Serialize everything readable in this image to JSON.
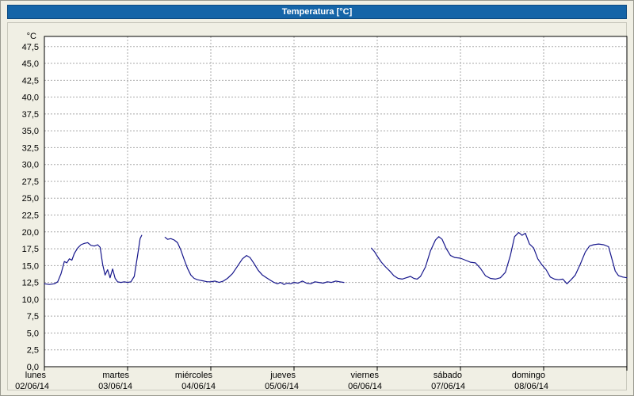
{
  "window": {
    "title": "Temperatura [°C]"
  },
  "colors": {
    "title_bar": "#1565a8",
    "background": "#f0efe4",
    "plot_background": "#ffffff",
    "grid": "#a8a8a8",
    "axis": "#000000",
    "line": "#16168b"
  },
  "chart_data": {
    "type": "line",
    "title": "Temperatura [°C]",
    "series_name": "Temperatura",
    "y_unit": "°C",
    "ylabel": "°C",
    "xlabel": "",
    "ylim": [
      0,
      49
    ],
    "ytick_step": 2.5,
    "grid": "dashed",
    "legend": "none",
    "line_color": "#16168b",
    "yticks": [
      {
        "v": 47.5,
        "label": "47,5"
      },
      {
        "v": 45.0,
        "label": "45,0"
      },
      {
        "v": 42.5,
        "label": "42,5"
      },
      {
        "v": 40.0,
        "label": "40,0"
      },
      {
        "v": 37.5,
        "label": "37,5"
      },
      {
        "v": 35.0,
        "label": "35,0"
      },
      {
        "v": 32.5,
        "label": "32,5"
      },
      {
        "v": 30.0,
        "label": "30,0"
      },
      {
        "v": 27.5,
        "label": "27,5"
      },
      {
        "v": 25.0,
        "label": "25,0"
      },
      {
        "v": 22.5,
        "label": "22,5"
      },
      {
        "v": 20.0,
        "label": "20,0"
      },
      {
        "v": 17.5,
        "label": "17,5"
      },
      {
        "v": 15.0,
        "label": "15,0"
      },
      {
        "v": 12.5,
        "label": "12,5"
      },
      {
        "v": 10.0,
        "label": "10,0"
      },
      {
        "v": 7.5,
        "label": "7,5"
      },
      {
        "v": 5.0,
        "label": "5,0"
      },
      {
        "v": 2.5,
        "label": "2,5"
      },
      {
        "v": 0.0,
        "label": "0,0"
      }
    ],
    "x_days": [
      {
        "name": "lunes",
        "date": "02/06/14"
      },
      {
        "name": "martes",
        "date": "03/06/14"
      },
      {
        "name": "miércoles",
        "date": "04/06/14"
      },
      {
        "name": "jueves",
        "date": "05/06/14"
      },
      {
        "name": "viernes",
        "date": "06/06/14"
      },
      {
        "name": "sábado",
        "date": "07/06/14"
      },
      {
        "name": "domingo",
        "date": "08/06/14"
      }
    ],
    "x_unit": "days (0 = 02/06/14 00:00)",
    "segments": [
      [
        [
          0.0,
          12.3
        ],
        [
          0.06,
          12.2
        ],
        [
          0.12,
          12.3
        ],
        [
          0.16,
          12.6
        ],
        [
          0.2,
          13.8
        ],
        [
          0.24,
          15.6
        ],
        [
          0.27,
          15.4
        ],
        [
          0.3,
          16.0
        ],
        [
          0.33,
          15.8
        ],
        [
          0.36,
          16.8
        ],
        [
          0.4,
          17.6
        ],
        [
          0.44,
          18.1
        ],
        [
          0.48,
          18.3
        ],
        [
          0.52,
          18.4
        ],
        [
          0.56,
          18.0
        ],
        [
          0.6,
          17.9
        ],
        [
          0.64,
          18.1
        ],
        [
          0.67,
          17.7
        ],
        [
          0.7,
          15.2
        ],
        [
          0.73,
          13.6
        ],
        [
          0.76,
          14.4
        ],
        [
          0.79,
          13.2
        ],
        [
          0.82,
          14.5
        ],
        [
          0.85,
          13.1
        ],
        [
          0.88,
          12.6
        ],
        [
          0.92,
          12.5
        ],
        [
          0.96,
          12.6
        ],
        [
          1.0,
          12.5
        ],
        [
          1.04,
          12.6
        ],
        [
          1.08,
          13.4
        ],
        [
          1.12,
          16.5
        ],
        [
          1.15,
          19.0
        ],
        [
          1.17,
          19.5
        ]
      ],
      [
        [
          1.45,
          19.2
        ],
        [
          1.48,
          18.9
        ],
        [
          1.52,
          19.0
        ],
        [
          1.56,
          18.8
        ],
        [
          1.6,
          18.4
        ],
        [
          1.64,
          17.3
        ],
        [
          1.68,
          15.9
        ],
        [
          1.72,
          14.6
        ],
        [
          1.76,
          13.6
        ],
        [
          1.8,
          13.1
        ],
        [
          1.84,
          12.9
        ],
        [
          1.88,
          12.8
        ],
        [
          1.92,
          12.7
        ],
        [
          1.96,
          12.6
        ],
        [
          2.0,
          12.6
        ],
        [
          2.05,
          12.7
        ],
        [
          2.1,
          12.5
        ],
        [
          2.15,
          12.7
        ],
        [
          2.2,
          13.1
        ],
        [
          2.26,
          13.8
        ],
        [
          2.32,
          14.9
        ],
        [
          2.38,
          16.0
        ],
        [
          2.43,
          16.5
        ],
        [
          2.47,
          16.2
        ],
        [
          2.52,
          15.3
        ],
        [
          2.57,
          14.3
        ],
        [
          2.62,
          13.6
        ],
        [
          2.67,
          13.2
        ],
        [
          2.72,
          12.8
        ],
        [
          2.76,
          12.5
        ],
        [
          2.8,
          12.3
        ],
        [
          2.84,
          12.5
        ],
        [
          2.88,
          12.2
        ],
        [
          2.92,
          12.4
        ],
        [
          2.96,
          12.3
        ],
        [
          3.0,
          12.5
        ],
        [
          3.05,
          12.4
        ],
        [
          3.1,
          12.7
        ],
        [
          3.15,
          12.4
        ],
        [
          3.2,
          12.3
        ],
        [
          3.25,
          12.6
        ],
        [
          3.3,
          12.5
        ],
        [
          3.35,
          12.4
        ],
        [
          3.4,
          12.6
        ],
        [
          3.45,
          12.5
        ],
        [
          3.5,
          12.7
        ],
        [
          3.55,
          12.6
        ],
        [
          3.6,
          12.5
        ]
      ],
      [
        [
          3.93,
          17.6
        ],
        [
          3.97,
          17.0
        ],
        [
          4.0,
          16.4
        ],
        [
          4.05,
          15.5
        ],
        [
          4.1,
          14.8
        ],
        [
          4.15,
          14.2
        ],
        [
          4.2,
          13.5
        ],
        [
          4.25,
          13.1
        ],
        [
          4.3,
          13.0
        ],
        [
          4.35,
          13.2
        ],
        [
          4.4,
          13.4
        ],
        [
          4.44,
          13.1
        ],
        [
          4.48,
          13.0
        ],
        [
          4.52,
          13.4
        ],
        [
          4.58,
          14.8
        ],
        [
          4.64,
          17.2
        ],
        [
          4.7,
          18.8
        ],
        [
          4.74,
          19.3
        ],
        [
          4.78,
          18.9
        ],
        [
          4.83,
          17.5
        ],
        [
          4.88,
          16.5
        ],
        [
          4.93,
          16.2
        ],
        [
          5.0,
          16.1
        ],
        [
          5.06,
          15.8
        ],
        [
          5.12,
          15.5
        ],
        [
          5.18,
          15.4
        ],
        [
          5.24,
          14.6
        ],
        [
          5.3,
          13.5
        ],
        [
          5.36,
          13.1
        ],
        [
          5.42,
          13.0
        ],
        [
          5.48,
          13.2
        ],
        [
          5.54,
          14.0
        ],
        [
          5.6,
          16.5
        ],
        [
          5.65,
          19.3
        ],
        [
          5.7,
          19.9
        ],
        [
          5.74,
          19.5
        ],
        [
          5.78,
          19.8
        ],
        [
          5.83,
          18.2
        ],
        [
          5.88,
          17.6
        ],
        [
          5.93,
          16.0
        ],
        [
          5.98,
          15.1
        ],
        [
          6.03,
          14.4
        ],
        [
          6.08,
          13.3
        ],
        [
          6.13,
          13.0
        ],
        [
          6.18,
          12.9
        ],
        [
          6.23,
          13.0
        ],
        [
          6.28,
          12.3
        ],
        [
          6.33,
          12.9
        ],
        [
          6.38,
          13.6
        ],
        [
          6.44,
          15.2
        ],
        [
          6.5,
          17.0
        ],
        [
          6.55,
          17.9
        ],
        [
          6.6,
          18.1
        ],
        [
          6.66,
          18.2
        ],
        [
          6.72,
          18.1
        ],
        [
          6.78,
          17.8
        ],
        [
          6.82,
          16.0
        ],
        [
          6.86,
          14.2
        ],
        [
          6.9,
          13.5
        ],
        [
          6.95,
          13.3
        ],
        [
          7.0,
          13.2
        ]
      ]
    ]
  }
}
